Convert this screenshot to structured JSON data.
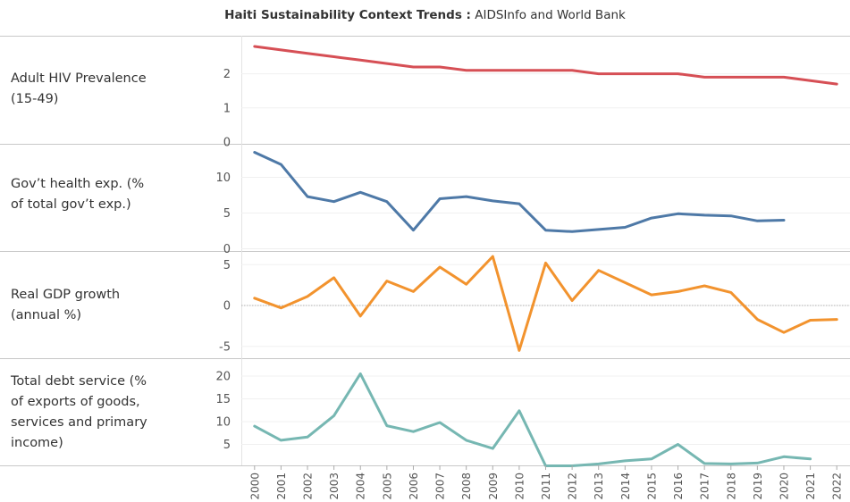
{
  "title_bold": "Haiti Sustainability Context Trends :",
  "title_rest": " AIDSInfo and World Bank",
  "chart_data": {
    "type": "line",
    "x": [
      "2000",
      "2001",
      "2002",
      "2003",
      "2004",
      "2005",
      "2006",
      "2007",
      "2008",
      "2009",
      "2010",
      "2011",
      "2012",
      "2013",
      "2014",
      "2015",
      "2016",
      "2017",
      "2018",
      "2019",
      "2020",
      "2021",
      "2022"
    ],
    "series": [
      {
        "name": "Adult HIV Prevalence (15-49)",
        "color": "#d64f55",
        "ylim": [
          0,
          3
        ],
        "yticks": [
          0,
          1,
          2
        ],
        "values": [
          2.8,
          2.7,
          2.6,
          2.5,
          2.4,
          2.3,
          2.2,
          2.2,
          2.1,
          2.1,
          2.1,
          2.1,
          2.1,
          2.0,
          2.0,
          2.0,
          2.0,
          1.9,
          1.9,
          1.9,
          1.9,
          1.8,
          1.7
        ]
      },
      {
        "name": "Gov’t health exp. (% of total gov’t exp.)",
        "color": "#4e79a7",
        "ylim": [
          0,
          14
        ],
        "yticks": [
          0,
          5,
          10
        ],
        "values": [
          13.5,
          11.8,
          7.3,
          6.6,
          7.9,
          6.6,
          2.6,
          7.0,
          7.3,
          6.7,
          6.3,
          2.6,
          2.4,
          2.7,
          3.0,
          4.3,
          4.9,
          4.7,
          4.6,
          3.9,
          4.0,
          null,
          null
        ]
      },
      {
        "name": "Real GDP growth (annual %)",
        "color": "#f2932e",
        "ylim": [
          -6,
          6
        ],
        "yticks": [
          -5,
          0,
          5
        ],
        "zero_line": true,
        "values": [
          0.9,
          -0.3,
          1.1,
          3.4,
          -1.3,
          3.0,
          1.7,
          4.7,
          2.6,
          6.0,
          -5.5,
          5.2,
          0.6,
          4.3,
          2.8,
          1.3,
          1.7,
          2.4,
          1.6,
          -1.7,
          -3.3,
          -1.8,
          -1.7
        ]
      },
      {
        "name": "Total debt service (% of exports of goods, services and primary income)",
        "color": "#76b7b2",
        "ylim": [
          0,
          21
        ],
        "yticks": [
          5,
          10,
          15,
          20
        ],
        "values": [
          9.0,
          5.9,
          6.6,
          11.3,
          20.5,
          9.1,
          7.8,
          9.8,
          5.9,
          4.1,
          12.4,
          0.3,
          0.3,
          0.7,
          1.4,
          1.8,
          5.0,
          0.8,
          0.7,
          0.9,
          2.3,
          1.8,
          null
        ]
      }
    ]
  },
  "row_labels": [
    [
      "Adult HIV Prevalence",
      "(15-49)"
    ],
    [
      "Gov’t health exp. (%",
      "of total gov’t exp.)"
    ],
    [
      "Real GDP growth",
      "(annual %)"
    ],
    [
      "Total debt service (%",
      "of exports of goods,",
      "services and primary",
      "income)"
    ]
  ]
}
